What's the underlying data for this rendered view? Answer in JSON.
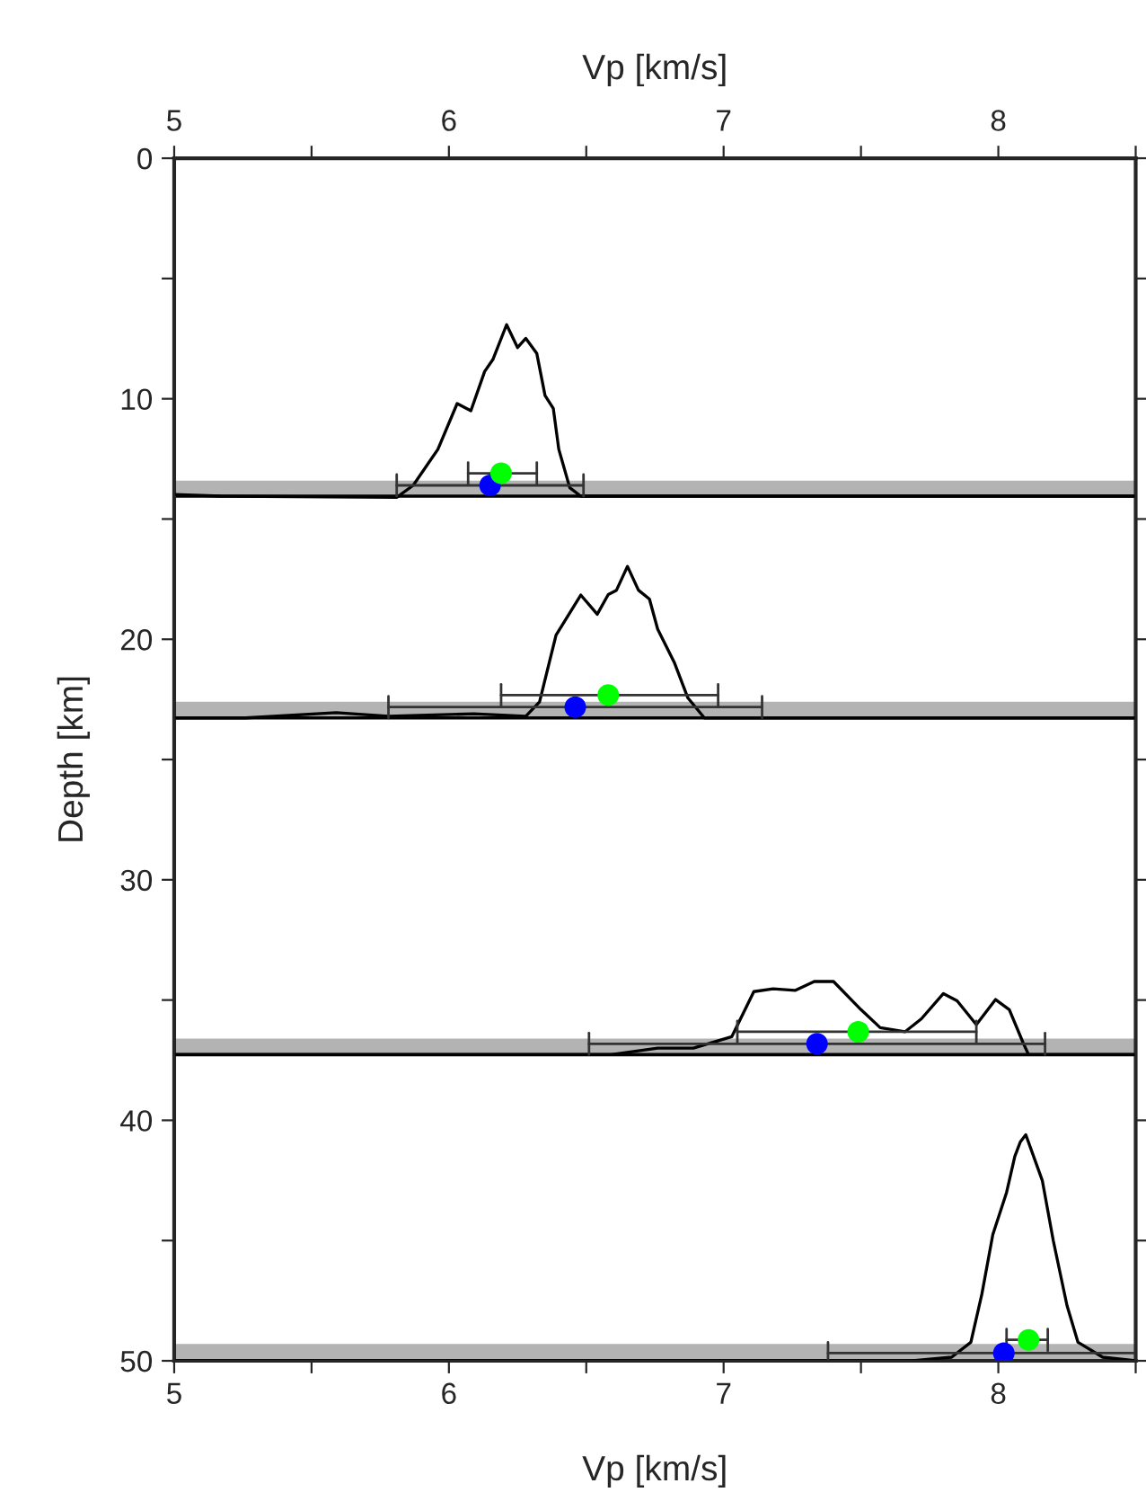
{
  "chart_data": {
    "type": "line",
    "xlabel": "Vp [km/s]",
    "x2label": "Vp [km/s]",
    "ylabel": "Depth [km]",
    "xlim": [
      5,
      8.5
    ],
    "x2lim": [
      5,
      8.5
    ],
    "ylim": [
      50,
      0
    ],
    "xticks": [
      5,
      {
        "value": 5.5,
        "label": null
      },
      6,
      {
        "value": 6.5,
        "label": null
      },
      7,
      {
        "value": 7.5,
        "label": null
      },
      8,
      {
        "value": 8.5,
        "label": null
      }
    ],
    "x2ticks": [
      5,
      {
        "value": 5.5,
        "label": null
      },
      6,
      {
        "value": 6.5,
        "label": null
      },
      7,
      {
        "value": 7.5,
        "label": null
      },
      8,
      {
        "value": 8.5,
        "label": null
      }
    ],
    "yticks": [
      0,
      {
        "value": 5,
        "label": null
      },
      10,
      {
        "value": 15,
        "label": null
      },
      20,
      {
        "value": 25,
        "label": null
      },
      30,
      {
        "value": 35,
        "label": null
      },
      40,
      {
        "value": 45,
        "label": null
      },
      50
    ],
    "grid": false,
    "legend": false,
    "bands": [
      {
        "axis": "y",
        "from": 13.4,
        "to": 14.05,
        "color": "#b3b3b3"
      },
      {
        "axis": "y",
        "from": 22.6,
        "to": 23.27,
        "color": "#b3b3b3"
      },
      {
        "axis": "y",
        "from": 36.6,
        "to": 37.27,
        "color": "#b3b3b3"
      },
      {
        "axis": "y",
        "from": 49.3,
        "to": 50,
        "color": "#b3b3b3"
      }
    ],
    "ref_lines": [
      {
        "axis": "y",
        "value": 14.05,
        "color": "#000000"
      },
      {
        "axis": "y",
        "value": 23.27,
        "color": "#000000"
      },
      {
        "axis": "y",
        "value": 37.27,
        "color": "#000000"
      }
    ],
    "series": [
      {
        "color": "#000000",
        "x": [
          5.0,
          5.17,
          5.81,
          5.87,
          5.96,
          6.03,
          6.08,
          6.13,
          6.16,
          6.21,
          6.25,
          6.28,
          6.32,
          6.35,
          6.38,
          6.4,
          6.44,
          6.48,
          8.5
        ],
        "values": [
          13.98,
          14.05,
          14.1,
          13.6,
          12.1,
          10.2,
          10.5,
          8.87,
          8.37,
          6.92,
          7.87,
          7.49,
          8.12,
          9.87,
          10.4,
          12.1,
          13.7,
          14.05,
          14.05
        ]
      },
      {
        "color": "#000000",
        "x": [
          5.0,
          5.26,
          5.59,
          5.78,
          6.09,
          6.28,
          6.33,
          6.39,
          6.48,
          6.54,
          6.58,
          6.61,
          6.65,
          6.69,
          6.73,
          6.76,
          6.82,
          6.87,
          6.93,
          8.5
        ],
        "values": [
          23.27,
          23.27,
          23.05,
          23.2,
          23.1,
          23.2,
          22.6,
          19.83,
          18.16,
          18.96,
          18.14,
          17.96,
          16.97,
          17.96,
          18.33,
          19.58,
          20.95,
          22.44,
          23.27,
          23.27
        ]
      },
      {
        "color": "#000000",
        "x": [
          5.0,
          6.59,
          6.76,
          6.89,
          7.03,
          7.11,
          7.18,
          7.26,
          7.33,
          7.4,
          7.5,
          7.57,
          7.66,
          7.72,
          7.8,
          7.85,
          7.92,
          7.99,
          8.04,
          8.09,
          8.11,
          8.5
        ],
        "values": [
          37.27,
          37.27,
          37.0,
          37.0,
          36.52,
          34.65,
          34.53,
          34.6,
          34.23,
          34.23,
          35.4,
          36.15,
          36.32,
          35.78,
          34.73,
          35.03,
          36.02,
          34.98,
          35.4,
          36.77,
          37.27,
          37.27
        ]
      },
      {
        "color": "#000000",
        "x": [
          5.0,
          7.68,
          7.83,
          7.9,
          7.94,
          7.98,
          8.03,
          8.06,
          8.08,
          8.1,
          8.16,
          8.2,
          8.25,
          8.29,
          8.38,
          8.5
        ],
        "values": [
          50.0,
          50.0,
          49.85,
          49.23,
          47.23,
          44.75,
          43.0,
          41.5,
          40.9,
          40.6,
          42.5,
          45.0,
          47.7,
          49.23,
          49.85,
          50.0
        ]
      },
      {
        "type": "scatter",
        "color": "#0000ff",
        "marker": "circle",
        "x": [
          6.15,
          6.46,
          7.34,
          8.02
        ],
        "values": [
          13.6,
          22.82,
          36.82,
          49.68
        ],
        "xerrors": [
          [
            5.81,
            6.49
          ],
          [
            5.78,
            7.14
          ],
          [
            6.51,
            8.17
          ],
          [
            7.38,
            8.5
          ]
        ]
      },
      {
        "type": "scatter",
        "color": "#00ff00",
        "marker": "circle",
        "x": [
          6.19,
          6.58,
          7.49,
          8.11
        ],
        "values": [
          13.1,
          22.32,
          36.32,
          49.13
        ],
        "xerrors": [
          [
            6.07,
            6.32
          ],
          [
            6.19,
            6.98
          ],
          [
            7.05,
            7.92
          ],
          [
            8.03,
            8.18
          ]
        ]
      }
    ]
  }
}
